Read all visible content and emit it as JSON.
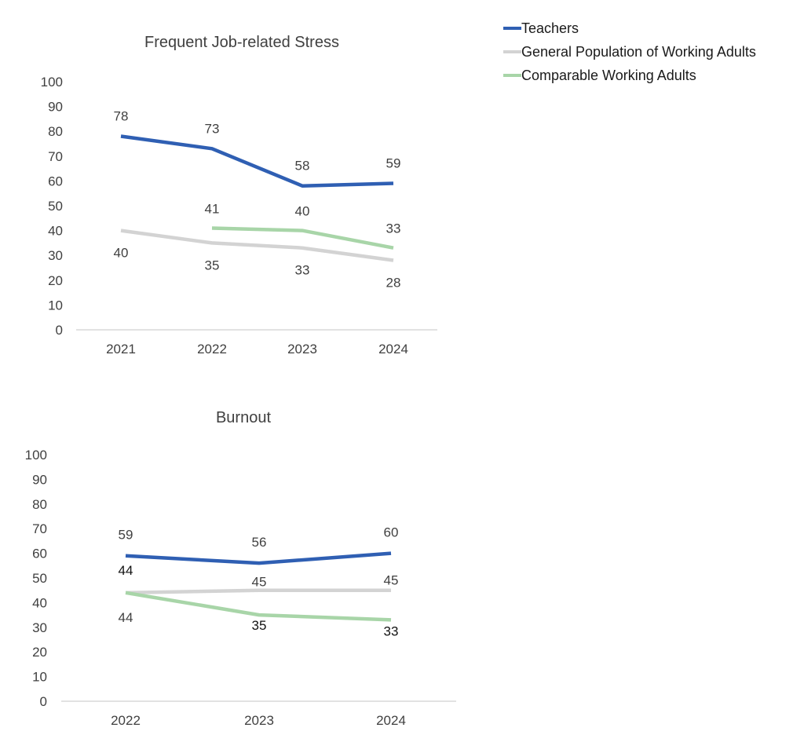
{
  "legend": [
    {
      "label": "Teachers",
      "color": "#2f5fb3"
    },
    {
      "label": "General Population of Working Adults",
      "color": "#d3d3d3"
    },
    {
      "label": "Comparable Working Adults",
      "color": "#a8d5a8"
    }
  ],
  "chart_data": [
    {
      "type": "line",
      "title": "Frequent Job-related Stress",
      "categories": [
        "2021",
        "2022",
        "2023",
        "2024"
      ],
      "ylim": [
        0,
        100
      ],
      "yticks": [
        0,
        10,
        20,
        30,
        40,
        50,
        60,
        70,
        80,
        90,
        100
      ],
      "grid": false,
      "legend_position": "top-right",
      "series": [
        {
          "name": "Teachers",
          "color": "#2f5fb3",
          "values": [
            78,
            73,
            58,
            59
          ]
        },
        {
          "name": "General Population of Working Adults",
          "color": "#d3d3d3",
          "values": [
            40,
            35,
            33,
            28
          ]
        },
        {
          "name": "Comparable Working Adults",
          "color": "#a8d5a8",
          "values": [
            null,
            41,
            40,
            33
          ]
        }
      ]
    },
    {
      "type": "line",
      "title": "Burnout",
      "categories": [
        "2022",
        "2023",
        "2024"
      ],
      "ylim": [
        0,
        100
      ],
      "yticks": [
        0,
        10,
        20,
        30,
        40,
        50,
        60,
        70,
        80,
        90,
        100
      ],
      "grid": false,
      "legend_position": "top-right",
      "series": [
        {
          "name": "Teachers",
          "color": "#2f5fb3",
          "values": [
            59,
            56,
            60
          ]
        },
        {
          "name": "General Population of Working Adults",
          "color": "#d3d3d3",
          "values": [
            44,
            45,
            45
          ]
        },
        {
          "name": "Comparable Working Adults",
          "color": "#a8d5a8",
          "values": [
            44,
            35,
            33
          ]
        }
      ]
    }
  ]
}
